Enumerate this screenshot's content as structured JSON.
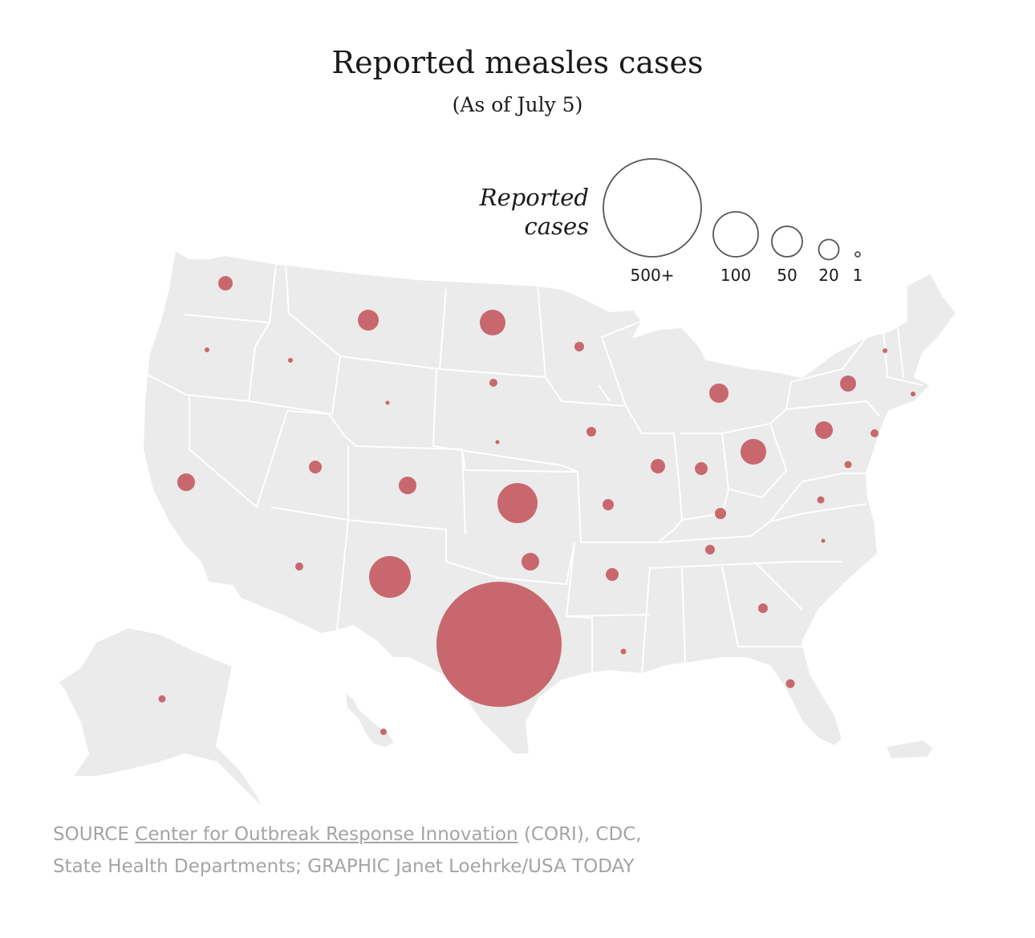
{
  "title": "Reported measles cases",
  "subtitle": "(As of July 5)",
  "legend": {
    "title_line1": "Reported",
    "title_line2": "cases",
    "sizes": [
      {
        "label": "500+",
        "value": 500
      },
      {
        "label": "100",
        "value": 100
      },
      {
        "label": "50",
        "value": 50
      },
      {
        "label": "20",
        "value": 20
      },
      {
        "label": "1",
        "value": 1
      }
    ]
  },
  "colors": {
    "land": "#ebebeb",
    "border": "#ffffff",
    "bubble": "#c25158",
    "text": "#1a1a1a",
    "source": "#a4a4a4"
  },
  "source": {
    "prefix": "SOURCE",
    "link_text": "Center for Outbreak Response Innovation",
    "after_link": "(CORI), CDC,",
    "line2": "State Health Departments; GRAPHIC Janet Loehrke/USA TODAY"
  }
}
